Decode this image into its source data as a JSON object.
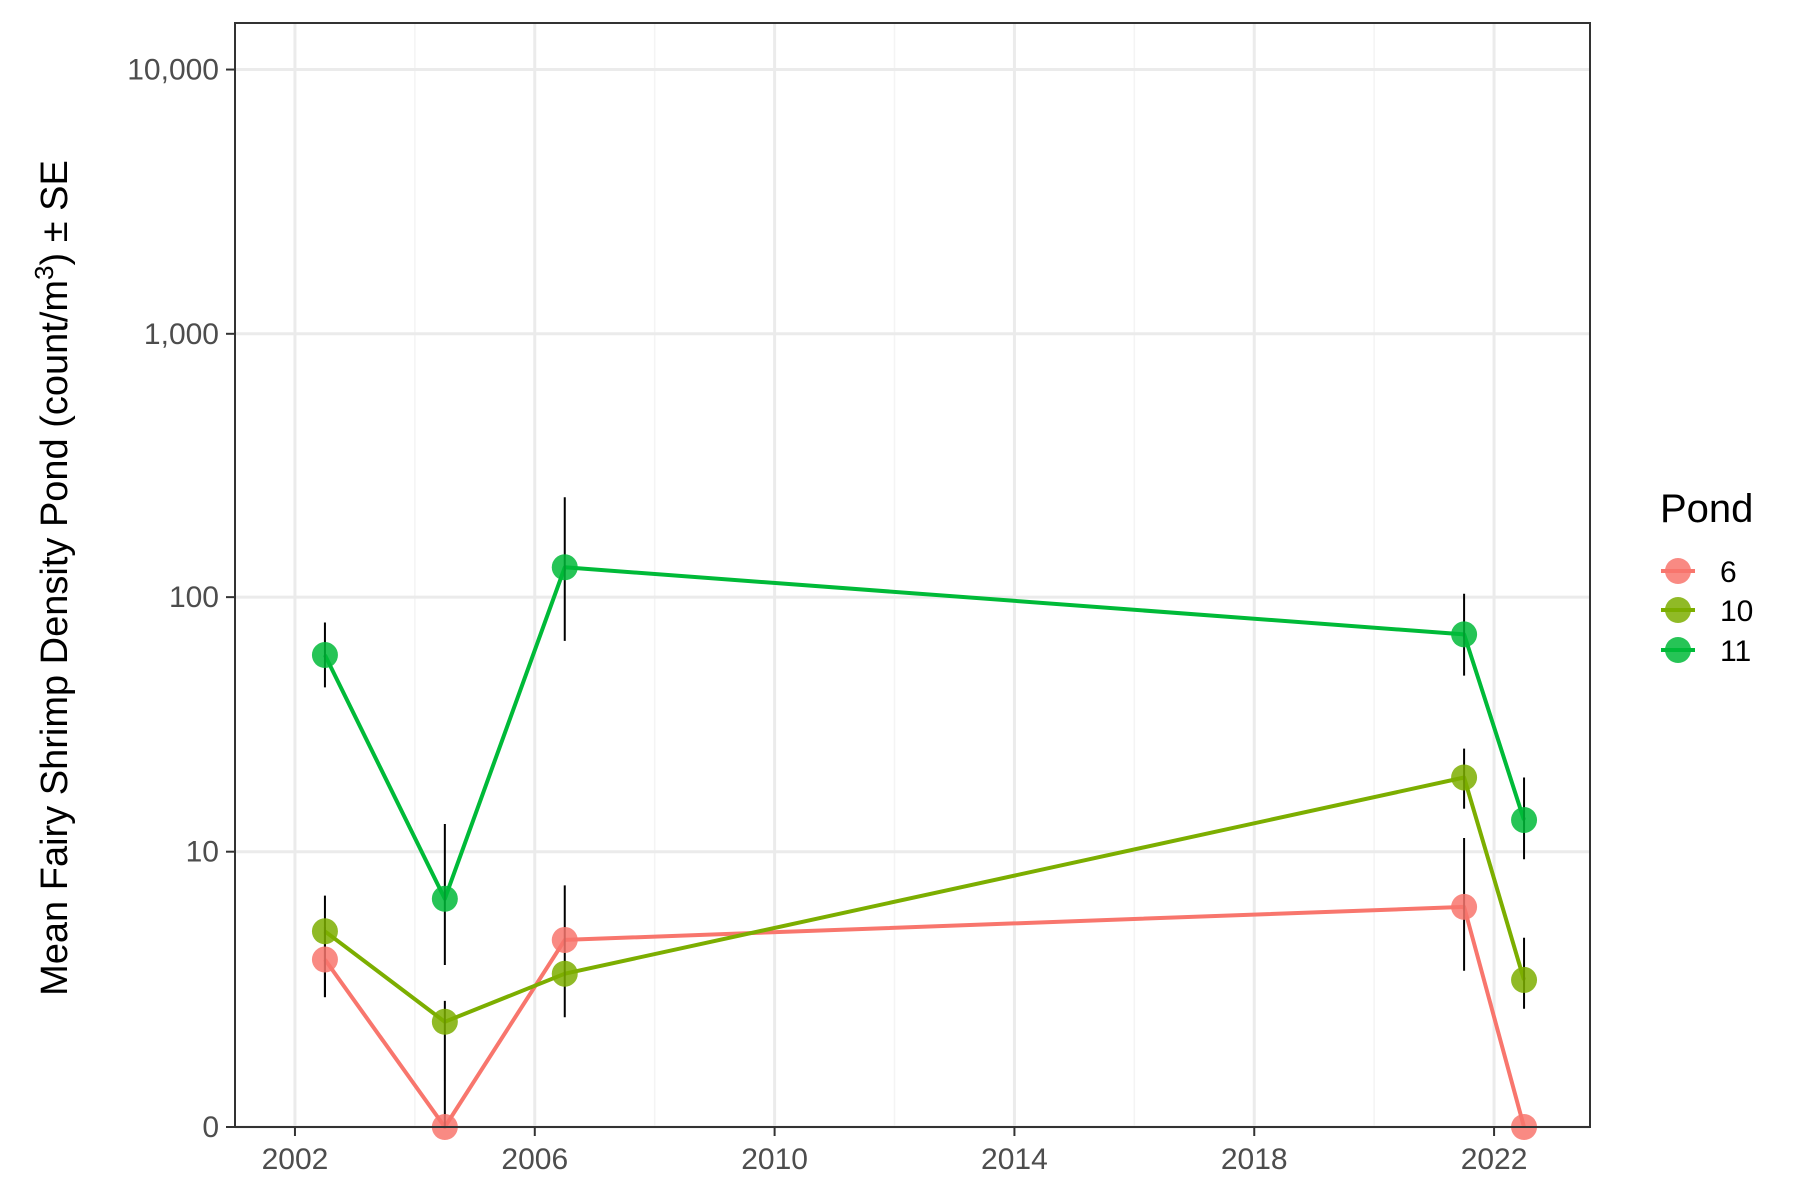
{
  "chart_data": {
    "type": "line",
    "ylabel": {
      "main": "Mean Fairy Shrimp Density Pond (count/m",
      "sup": "3",
      "tail": ") ± SE"
    },
    "x_ticks": [
      2002,
      2006,
      2010,
      2014,
      2018,
      2022
    ],
    "x_tick_labels": [
      "2002",
      "2006",
      "2010",
      "2014",
      "2018",
      "2022"
    ],
    "xlim": [
      2001,
      2023.6
    ],
    "y_scale": "pseudo-log10 (log10(y+1))",
    "y_ticks": [
      0,
      10,
      100,
      1000,
      10000
    ],
    "y_tick_labels": [
      "0",
      "10",
      "100",
      "1,000",
      "10,000"
    ],
    "ylim": [
      0,
      15000
    ],
    "x": [
      2002.5,
      2004.5,
      2006.5,
      2021.5,
      2022.5
    ],
    "legend": {
      "title": "Pond",
      "position": "right"
    },
    "grid": true,
    "series": [
      {
        "name": "6",
        "color": "#f8766d",
        "values": [
          3.3,
          0,
          4.1,
          5.8,
          0
        ],
        "se_low": [
          2.1,
          0,
          0,
          2.9,
          0
        ],
        "se_high": [
          4.7,
          0.5,
          0,
          11.4,
          0
        ]
      },
      {
        "name": "10",
        "color": "#7cae00",
        "values": [
          4.5,
          1.5,
          2.8,
          20,
          2.6
        ],
        "se_low": [
          2.1,
          0.5,
          1.6,
          15,
          1.8
        ],
        "se_high": [
          6.5,
          2.0,
          7.2,
          26,
          4.2
        ]
      },
      {
        "name": "11",
        "color": "#00ba38",
        "values": [
          60,
          6.3,
          130,
          72,
          13.5
        ],
        "se_low": [
          45,
          3.1,
          68,
          50,
          9.3
        ],
        "se_high": [
          80,
          13,
          240,
          103,
          20
        ]
      }
    ]
  }
}
